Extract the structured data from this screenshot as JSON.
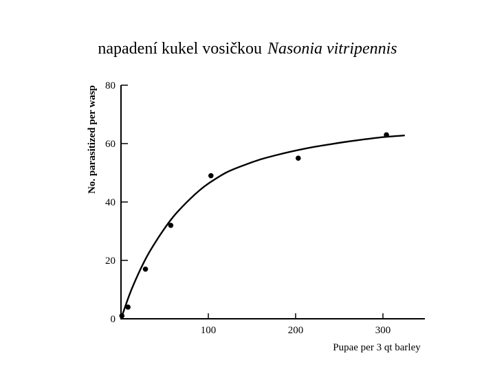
{
  "slide": {
    "title_text": "napadení kukel vosičkou",
    "title_species": "Nasonia vitripennis"
  },
  "chart_data": {
    "type": "scatter",
    "title": "",
    "xlabel": "Pupae per 3 qt barley",
    "ylabel": "No. parasitized per wasp",
    "xlim": [
      0,
      350
    ],
    "ylim": [
      0,
      80
    ],
    "xticks": [
      100,
      200,
      300
    ],
    "yticks": [
      0,
      20,
      40,
      60,
      80
    ],
    "grid": false,
    "series": [
      {
        "kind": "points",
        "x": [
          1,
          8,
          28,
          57,
          103,
          203,
          304
        ],
        "y": [
          1,
          4,
          17,
          32,
          49,
          55,
          63
        ]
      },
      {
        "kind": "fitted-curve",
        "x": [
          0,
          10,
          20,
          30,
          40,
          50,
          60,
          70,
          80,
          90,
          100,
          120,
          140,
          160,
          180,
          200,
          220,
          240,
          260,
          280,
          300,
          325
        ],
        "y": [
          0,
          8.5,
          15.5,
          21.5,
          26.5,
          31,
          35,
          38.3,
          41.3,
          44,
          46.3,
          50,
          52.5,
          54.6,
          56.2,
          57.6,
          58.8,
          59.8,
          60.7,
          61.5,
          62.2,
          62.8
        ]
      }
    ]
  }
}
